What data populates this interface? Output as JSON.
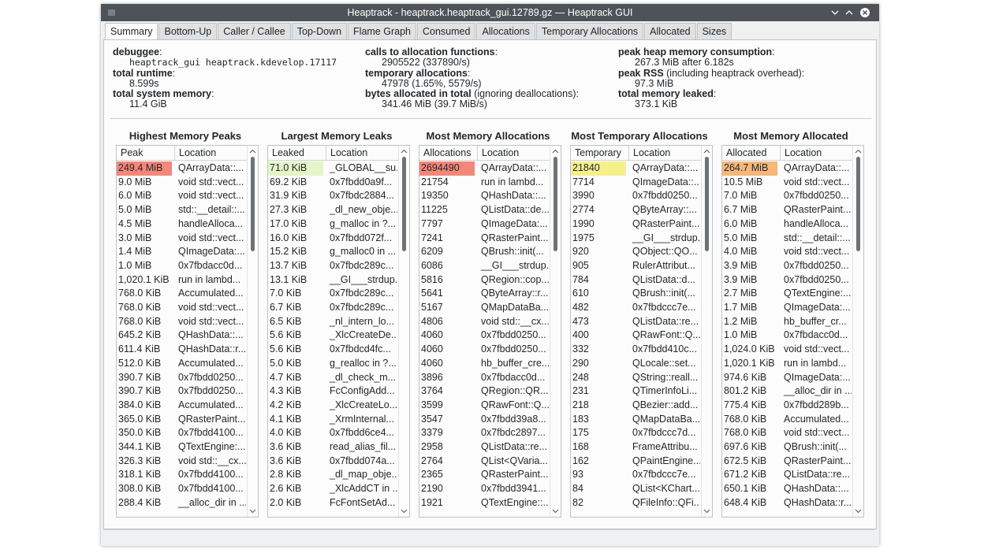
{
  "window": {
    "title": "Heaptrack - heaptrack.heaptrack_gui.12789.gz — Heaptrack GUI"
  },
  "tabs": [
    "Summary",
    "Bottom-Up",
    "Caller / Callee",
    "Top-Down",
    "Flame Graph",
    "Consumed",
    "Allocations",
    "Temporary Allocations",
    "Allocated",
    "Sizes"
  ],
  "summary": [
    [
      {
        "label": "debuggee",
        "rest": ":",
        "value": "heaptrack_gui heaptrack.kdevelop.17117",
        "mono": true
      },
      {
        "label": "total runtime",
        "rest": ":",
        "value": "8.599s"
      },
      {
        "label": "total system memory",
        "rest": ":",
        "value": "11.4 GiB"
      }
    ],
    [
      {
        "label": "calls to allocation functions",
        "rest": ":",
        "value": "2905522 (337890/s)"
      },
      {
        "label": "temporary allocations",
        "rest": ":",
        "value": "47978 (1.65%, 5579/s)"
      },
      {
        "label": "bytes allocated in total",
        "rest": " (ignoring deallocations):",
        "value": "341.46 MiB (39.7 MiB/s)"
      }
    ],
    [
      {
        "label": "peak heap memory consumption",
        "rest": ":",
        "value": "267.3 MiB after 6.182s"
      },
      {
        "label": "peak RSS",
        "rest": " (including heaptrack overhead):",
        "value": "97.3 MiB"
      },
      {
        "label": "total memory leaked",
        "rest": ":",
        "value": "373.1 KiB"
      }
    ]
  ],
  "tables": [
    {
      "title": "Highest Memory Peaks",
      "columns": [
        "Peak",
        "Location"
      ],
      "highlight": "#f3877a",
      "rows": [
        [
          "249.4 MiB",
          "QArrayData::..."
        ],
        [
          "9.0 MiB",
          "void std::vect..."
        ],
        [
          "6.0 MiB",
          "void std::vect..."
        ],
        [
          "5.0 MiB",
          "std::__detail::..."
        ],
        [
          "4.5 MiB",
          "handleAlloca..."
        ],
        [
          "3.0 MiB",
          "void std::vect..."
        ],
        [
          "1.4 MiB",
          "QImageData:..."
        ],
        [
          "1.0 MiB",
          "0x7fbdacc0d..."
        ],
        [
          "1,020.1 KiB",
          "run in lambd..."
        ],
        [
          "768.0 KiB",
          "Accumulated..."
        ],
        [
          "768.0 KiB",
          "void std::vect..."
        ],
        [
          "768.0 KiB",
          "void std::vect..."
        ],
        [
          "645.2 KiB",
          "QHashData::..."
        ],
        [
          "611.4 KiB",
          "QHashData::r..."
        ],
        [
          "512.0 KiB",
          "Accumulated..."
        ],
        [
          "390.7 KiB",
          "0x7fbdd0250..."
        ],
        [
          "390.7 KiB",
          "0x7fbdd0250..."
        ],
        [
          "384.0 KiB",
          "Accumulated..."
        ],
        [
          "365.0 KiB",
          "QRasterPaint..."
        ],
        [
          "350.0 KiB",
          "0x7fbdd4100..."
        ],
        [
          "344.1 KiB",
          "QTextEngine:..."
        ],
        [
          "326.3 KiB",
          "void std::__cx..."
        ],
        [
          "318.1 KiB",
          "0x7fbdd4100..."
        ],
        [
          "308.0 KiB",
          "0x7fbdd4100..."
        ],
        [
          "288.4 KiB",
          "__alloc_dir in ..."
        ]
      ]
    },
    {
      "title": "Largest Memory Leaks",
      "columns": [
        "Leaked",
        "Location"
      ],
      "highlight": "#e4f5c8",
      "rows": [
        [
          "71.0 KiB",
          "_GLOBAL__su..."
        ],
        [
          "69.2 KiB",
          "0x7fbdd0a9f..."
        ],
        [
          "31.9 KiB",
          "0x7fbdc2884..."
        ],
        [
          "27.3 KiB",
          "_dl_new_obje..."
        ],
        [
          "17.0 KiB",
          "g_malloc in ?..."
        ],
        [
          "16.0 KiB",
          "0x7fbdd072f..."
        ],
        [
          "15.2 KiB",
          "g_malloc0 in ..."
        ],
        [
          "13.7 KiB",
          "0x7fbdc289c..."
        ],
        [
          "13.1 KiB",
          "__GI___strdup..."
        ],
        [
          "7.0 KiB",
          "0x7fbdc289c..."
        ],
        [
          "6.7 KiB",
          "0x7fbdc289c..."
        ],
        [
          "6.5 KiB",
          "_nl_intern_lo..."
        ],
        [
          "5.6 KiB",
          "_XlcCreateDe..."
        ],
        [
          "5.6 KiB",
          "0x7fbdcd4fc..."
        ],
        [
          "5.0 KiB",
          "g_realloc in ?..."
        ],
        [
          "4.7 KiB",
          "_dl_check_m..."
        ],
        [
          "4.3 KiB",
          "FcConfigAdd..."
        ],
        [
          "4.2 KiB",
          "_XlcCreateLo..."
        ],
        [
          "4.1 KiB",
          "_XrmInternal..."
        ],
        [
          "4.0 KiB",
          "0x7fbdd6ce4..."
        ],
        [
          "3.6 KiB",
          "read_alias_fil..."
        ],
        [
          "3.6 KiB",
          "0x7fbdd074a..."
        ],
        [
          "2.8 KiB",
          "_dl_map_obje..."
        ],
        [
          "2.6 KiB",
          "_XlcAddCT in ..."
        ],
        [
          "2.0 KiB",
          "FcFontSetAd..."
        ]
      ]
    },
    {
      "title": "Most Memory Allocations",
      "columns": [
        "Allocations",
        "Location"
      ],
      "highlight": "#f3877a",
      "rows": [
        [
          "2694490",
          "QArrayData::..."
        ],
        [
          "21754",
          "run in lambd..."
        ],
        [
          "19350",
          "QHashData::..."
        ],
        [
          "11225",
          "QListData::de..."
        ],
        [
          "7797",
          "QImageData:..."
        ],
        [
          "7241",
          "QRasterPaint..."
        ],
        [
          "6209",
          "QBrush::init(..."
        ],
        [
          "6086",
          "__GI___strdup..."
        ],
        [
          "5816",
          "QRegion::cop..."
        ],
        [
          "5641",
          "QByteArray::r..."
        ],
        [
          "5167",
          "QMapDataBa..."
        ],
        [
          "4806",
          "void std::__cx..."
        ],
        [
          "4060",
          "0x7fbdd0250..."
        ],
        [
          "4060",
          "0x7fbdd0250..."
        ],
        [
          "4060",
          "hb_buffer_cre..."
        ],
        [
          "3896",
          "0x7fbdacc0d..."
        ],
        [
          "3764",
          "QRegion::QR..."
        ],
        [
          "3599",
          "QRawFont::Q..."
        ],
        [
          "3547",
          "0x7fbdd39a8..."
        ],
        [
          "3379",
          "0x7fbdc2897..."
        ],
        [
          "2958",
          "QListData::re..."
        ],
        [
          "2764",
          "QList<QVaria..."
        ],
        [
          "2365",
          "QRasterPaint..."
        ],
        [
          "2190",
          "0x7fbdd3941..."
        ],
        [
          "1921",
          "QTextEngine::..."
        ]
      ]
    },
    {
      "title": "Most Temporary Allocations",
      "columns": [
        "Temporary",
        "Location"
      ],
      "highlight": "#f5f08a",
      "rows": [
        [
          "21840",
          "QArrayData::..."
        ],
        [
          "7714",
          "QImageData::..."
        ],
        [
          "3990",
          "0x7fbdd0250..."
        ],
        [
          "2774",
          "QByteArray::..."
        ],
        [
          "1990",
          "QRasterPaint..."
        ],
        [
          "1975",
          "__GI___strdup..."
        ],
        [
          "920",
          "QObject::QO..."
        ],
        [
          "905",
          "RulerAttribut..."
        ],
        [
          "784",
          "QListData::d..."
        ],
        [
          "610",
          "QBrush::init(..."
        ],
        [
          "482",
          "0x7fbdccc7e..."
        ],
        [
          "473",
          "QListData::re..."
        ],
        [
          "400",
          "QRawFont::Q..."
        ],
        [
          "332",
          "0x7fbdd410c..."
        ],
        [
          "290",
          "QLocale::set..."
        ],
        [
          "248",
          "QString::reall..."
        ],
        [
          "231",
          "QTimerInfoLi..."
        ],
        [
          "218",
          "QBezier::add..."
        ],
        [
          "183",
          "QMapDataBa..."
        ],
        [
          "175",
          "0x7fbdccc7d..."
        ],
        [
          "168",
          "FrameAttribu..."
        ],
        [
          "162",
          "QPaintEngine..."
        ],
        [
          "93",
          "0x7fbdccc7e..."
        ],
        [
          "84",
          "QList<KChart..."
        ],
        [
          "82",
          "QFileInfo::QFi..."
        ]
      ]
    },
    {
      "title": "Most Memory Allocated",
      "columns": [
        "Allocated",
        "Location"
      ],
      "highlight": "#f5b77a",
      "rows": [
        [
          "264.7 MiB",
          "QArrayData::..."
        ],
        [
          "10.5 MiB",
          "void std::vect..."
        ],
        [
          "7.0 MiB",
          "0x7fbdd0250..."
        ],
        [
          "6.7 MiB",
          "QRasterPaint..."
        ],
        [
          "6.0 MiB",
          "handleAlloca..."
        ],
        [
          "5.0 MiB",
          "std::__detail::..."
        ],
        [
          "4.0 MiB",
          "void std::vect..."
        ],
        [
          "3.9 MiB",
          "0x7fbdd0250..."
        ],
        [
          "3.9 MiB",
          "0x7fbdd0250..."
        ],
        [
          "2.7 MiB",
          "QTextEngine:..."
        ],
        [
          "1.7 MiB",
          "QImageData:..."
        ],
        [
          "1.2 MiB",
          "hb_buffer_cr..."
        ],
        [
          "1.0 MiB",
          "0x7fbdacc0d..."
        ],
        [
          "1,024.0 KiB",
          "void std::vect..."
        ],
        [
          "1,020.1 KiB",
          "run in lambd..."
        ],
        [
          "974.6 KiB",
          "QImageData:..."
        ],
        [
          "801.2 KiB",
          "__alloc_dir in ..."
        ],
        [
          "775.4 KiB",
          "0x7fbdd289b..."
        ],
        [
          "768.0 KiB",
          "Accumulated..."
        ],
        [
          "768.0 KiB",
          "void std::vect..."
        ],
        [
          "697.6 KiB",
          "QBrush::init(..."
        ],
        [
          "672.5 KiB",
          "QRasterPaint..."
        ],
        [
          "671.2 KiB",
          "QListData::re..."
        ],
        [
          "650.1 KiB",
          "QHashData::..."
        ],
        [
          "648.4 KiB",
          "QHashData::r..."
        ]
      ]
    }
  ]
}
